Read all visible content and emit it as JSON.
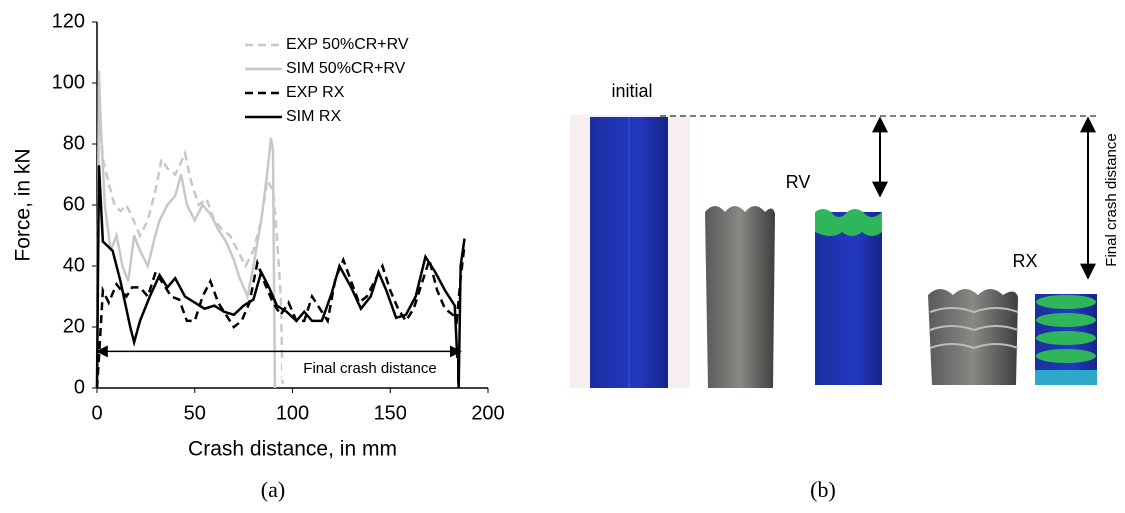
{
  "chart_data": {
    "type": "line",
    "caption": "(a)",
    "xlabel": "Crash distance, in mm",
    "ylabel": "Force, in kN",
    "xlim": [
      0,
      200
    ],
    "xticks": [
      0,
      50,
      100,
      150,
      200
    ],
    "ylim": [
      0,
      120
    ],
    "yticks": [
      0,
      20,
      40,
      60,
      80,
      100,
      120
    ],
    "grid": false,
    "legend": "upper center",
    "annotation": {
      "text": "Final crash distance",
      "from": 0,
      "to": 186,
      "y": 12
    },
    "series": [
      {
        "name": "EXP 50%CR+RV",
        "color": "#c8c8c8",
        "dashed": true,
        "x": [
          0,
          1,
          3,
          6,
          9,
          12,
          15,
          18,
          22,
          26,
          30,
          33,
          36,
          40,
          43,
          45,
          48,
          52,
          56,
          60,
          64,
          68,
          72,
          76,
          80,
          84,
          87,
          90,
          92,
          94,
          95
        ],
        "values": [
          0,
          95,
          75,
          67,
          60,
          58,
          60,
          56,
          50,
          55,
          65,
          75,
          72,
          70,
          74,
          77,
          68,
          60,
          62,
          55,
          52,
          50,
          45,
          40,
          45,
          55,
          68,
          65,
          50,
          30,
          0
        ]
      },
      {
        "name": "SIM 50%CR+RV",
        "color": "#c8c8c8",
        "dashed": false,
        "x": [
          0,
          1,
          2,
          4,
          7,
          10,
          13,
          16,
          19,
          22,
          26,
          29,
          32,
          36,
          40,
          43,
          46,
          50,
          54,
          58,
          62,
          66,
          70,
          73,
          77,
          80,
          84,
          87,
          89,
          90,
          91
        ],
        "values": [
          0,
          104,
          85,
          60,
          45,
          50,
          40,
          35,
          50,
          45,
          40,
          48,
          55,
          60,
          63,
          70,
          60,
          55,
          60,
          57,
          52,
          48,
          42,
          36,
          30,
          40,
          55,
          70,
          82,
          78,
          0
        ]
      },
      {
        "name": "EXP RX",
        "color": "#000000",
        "dashed": true,
        "x": [
          0,
          1,
          3,
          6,
          10,
          15,
          18,
          22,
          26,
          30,
          34,
          38,
          42,
          46,
          50,
          54,
          58,
          62,
          66,
          70,
          74,
          78,
          82,
          86,
          90,
          94,
          98,
          102,
          106,
          110,
          114,
          118,
          122,
          126,
          130,
          134,
          138,
          142,
          146,
          150,
          154,
          158,
          162,
          166,
          170,
          174,
          178,
          182,
          184,
          186,
          188
        ],
        "values": [
          0,
          10,
          32,
          28,
          34,
          30,
          33,
          33,
          30,
          38,
          34,
          30,
          29,
          22,
          22,
          30,
          35,
          28,
          24,
          20,
          22,
          28,
          41,
          34,
          28,
          24,
          28,
          22,
          22,
          30,
          26,
          22,
          36,
          42,
          35,
          28,
          30,
          35,
          40,
          32,
          26,
          22,
          26,
          34,
          42,
          32,
          26,
          24,
          22,
          36,
          47
        ]
      },
      {
        "name": "SIM RX",
        "color": "#000000",
        "dashed": false,
        "x": [
          0,
          1,
          3,
          8,
          12,
          17,
          19,
          22,
          27,
          32,
          36,
          40,
          45,
          50,
          55,
          60,
          65,
          70,
          75,
          80,
          84,
          88,
          92,
          97,
          102,
          106,
          110,
          115,
          120,
          124,
          130,
          135,
          140,
          144,
          148,
          153,
          158,
          163,
          168,
          173,
          178,
          183,
          185,
          186,
          188
        ],
        "values": [
          0,
          73,
          48,
          45,
          35,
          20,
          15,
          22,
          30,
          37,
          33,
          36,
          30,
          28,
          26,
          27,
          25,
          24,
          27,
          29,
          38,
          33,
          27,
          25,
          22,
          25,
          22,
          22,
          31,
          40,
          33,
          26,
          30,
          38,
          32,
          23,
          24,
          30,
          43,
          38,
          32,
          27,
          0,
          40,
          49
        ]
      }
    ]
  },
  "panel_b": {
    "caption": "(b)",
    "initial": "initial",
    "rv": "RV",
    "rx": "RX",
    "distance": "Final crash distance"
  }
}
